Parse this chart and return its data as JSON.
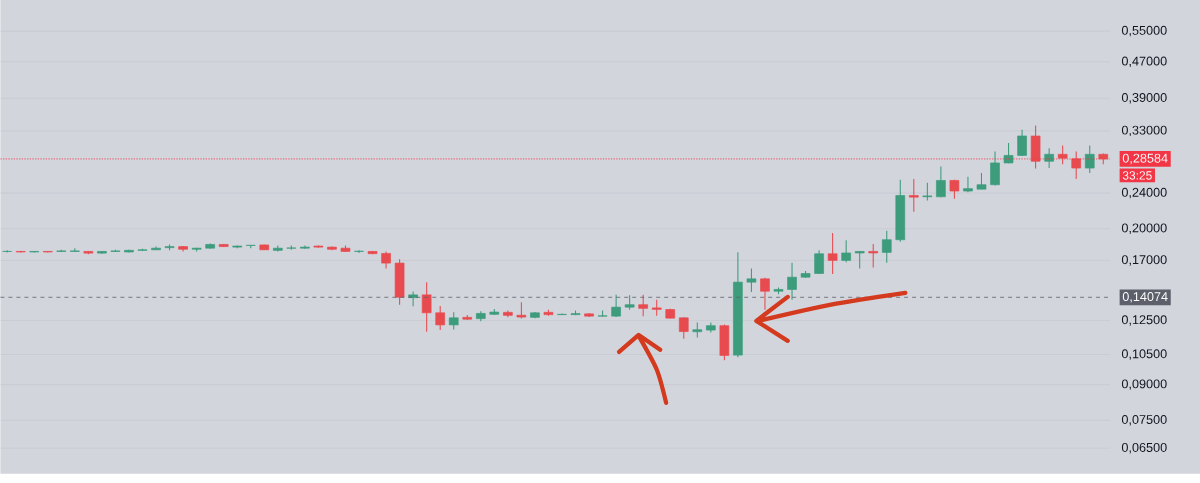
{
  "chart_data": {
    "type": "candlestick",
    "log": true,
    "grid": "y",
    "ylim": [
      0.057,
      0.645
    ],
    "yticks": [
      {
        "value": 0.55,
        "label": "0,55000"
      },
      {
        "value": 0.47,
        "label": "0,47000"
      },
      {
        "value": 0.39,
        "label": "0,39000"
      },
      {
        "value": 0.33,
        "label": "0,33000"
      },
      {
        "value": 0.24,
        "label": "0,24000"
      },
      {
        "value": 0.2,
        "label": "0,20000"
      },
      {
        "value": 0.17,
        "label": "0,17000"
      },
      {
        "value": 0.125,
        "label": "0,12500"
      },
      {
        "value": 0.105,
        "label": "0,10500"
      },
      {
        "value": 0.09,
        "label": "0,09000"
      },
      {
        "value": 0.075,
        "label": "0,07500"
      },
      {
        "value": 0.065,
        "label": "0,06500"
      }
    ],
    "categories": [
      null,
      null,
      null,
      null,
      null,
      null,
      null,
      null,
      null,
      null,
      null,
      null,
      null,
      null,
      null,
      null,
      null,
      null,
      null,
      null,
      null,
      null,
      null,
      null,
      null,
      null,
      null,
      null,
      null,
      null,
      null,
      null,
      null,
      null,
      null,
      null,
      null,
      null,
      null,
      null,
      null,
      null,
      null,
      null,
      null,
      null,
      null,
      null,
      null,
      null,
      null,
      null,
      null,
      null,
      null,
      null,
      null,
      null,
      null,
      null,
      null,
      null,
      null,
      null,
      null,
      null,
      null,
      null,
      null,
      null,
      null,
      null,
      null,
      null,
      null,
      null,
      null,
      null,
      null,
      null,
      null,
      null
    ],
    "ohlc": [
      [
        0.178,
        0.179,
        0.177,
        0.178
      ],
      [
        0.178,
        0.1785,
        0.177,
        0.1775
      ],
      [
        0.1775,
        0.1785,
        0.177,
        0.178
      ],
      [
        0.178,
        0.1785,
        0.177,
        0.1775
      ],
      [
        0.178,
        0.1795,
        0.1775,
        0.1785
      ],
      [
        0.178,
        0.181,
        0.1775,
        0.1785
      ],
      [
        0.178,
        0.1785,
        0.1755,
        0.1765
      ],
      [
        0.1765,
        0.1785,
        0.176,
        0.178
      ],
      [
        0.178,
        0.1795,
        0.1775,
        0.1785
      ],
      [
        0.1775,
        0.1795,
        0.177,
        0.179
      ],
      [
        0.179,
        0.1805,
        0.1785,
        0.1795
      ],
      [
        0.1795,
        0.1825,
        0.1795,
        0.181
      ],
      [
        0.1815,
        0.1845,
        0.179,
        0.1825
      ],
      [
        0.1825,
        0.183,
        0.178,
        0.18
      ],
      [
        0.18,
        0.1815,
        0.178,
        0.181
      ],
      [
        0.181,
        0.1855,
        0.1805,
        0.1845
      ],
      [
        0.1845,
        0.185,
        0.182,
        0.1825
      ],
      [
        0.182,
        0.1835,
        0.181,
        0.183
      ],
      [
        0.1835,
        0.184,
        0.181,
        0.1837
      ],
      [
        0.184,
        0.1845,
        0.1795,
        0.1795
      ],
      [
        0.179,
        0.1835,
        0.178,
        0.181
      ],
      [
        0.181,
        0.1835,
        0.1795,
        0.1812
      ],
      [
        0.181,
        0.1835,
        0.1805,
        0.182
      ],
      [
        0.183,
        0.1835,
        0.1815,
        0.182
      ],
      [
        0.182,
        0.1825,
        0.179,
        0.18
      ],
      [
        0.181,
        0.1835,
        0.1775,
        0.178
      ],
      [
        0.178,
        0.179,
        0.1765,
        0.1782
      ],
      [
        0.178,
        0.1785,
        0.1755,
        0.176
      ],
      [
        0.1762,
        0.178,
        0.163,
        0.1677
      ],
      [
        0.1677,
        0.171,
        0.1354,
        0.1408
      ],
      [
        0.1405,
        0.145,
        0.1345,
        0.1425
      ],
      [
        0.1425,
        0.152,
        0.118,
        0.13
      ],
      [
        0.13,
        0.1346,
        0.119,
        0.1222
      ],
      [
        0.1222,
        0.1303,
        0.1193,
        0.1267
      ],
      [
        0.127,
        0.1285,
        0.1255,
        0.1258
      ],
      [
        0.1262,
        0.131,
        0.1245,
        0.1296
      ],
      [
        0.129,
        0.1325,
        0.1285,
        0.1305
      ],
      [
        0.1303,
        0.1315,
        0.127,
        0.1283
      ],
      [
        0.1284,
        0.1373,
        0.1262,
        0.1272
      ],
      [
        0.127,
        0.1305,
        0.1265,
        0.13
      ],
      [
        0.1303,
        0.132,
        0.128,
        0.1288
      ],
      [
        0.1288,
        0.1295,
        0.1285,
        0.129
      ],
      [
        0.1288,
        0.1315,
        0.1285,
        0.1295
      ],
      [
        0.1293,
        0.1298,
        0.1272,
        0.1278
      ],
      [
        0.1278,
        0.1315,
        0.1275,
        0.128
      ],
      [
        0.1278,
        0.1425,
        0.1272,
        0.1338
      ],
      [
        0.1338,
        0.1422,
        0.132,
        0.1355
      ],
      [
        0.1355,
        0.1425,
        0.1277,
        0.133
      ],
      [
        0.1333,
        0.139,
        0.128,
        0.1323
      ],
      [
        0.1322,
        0.1328,
        0.1262,
        0.1265
      ],
      [
        0.1267,
        0.127,
        0.1138,
        0.1181
      ],
      [
        0.118,
        0.1237,
        0.1146,
        0.1192
      ],
      [
        0.119,
        0.1237,
        0.1176,
        0.1217
      ],
      [
        0.1217,
        0.1225,
        0.102,
        0.1045
      ],
      [
        0.1047,
        0.1773,
        0.1035,
        0.1521
      ],
      [
        0.1521,
        0.163,
        0.1446,
        0.1547
      ],
      [
        0.1547,
        0.1555,
        0.132,
        0.1452
      ],
      [
        0.1452,
        0.148,
        0.143,
        0.1465
      ],
      [
        0.1465,
        0.168,
        0.139,
        0.156
      ],
      [
        0.156,
        0.161,
        0.1555,
        0.159
      ],
      [
        0.159,
        0.179,
        0.1586,
        0.1759
      ],
      [
        0.1759,
        0.1957,
        0.1586,
        0.17
      ],
      [
        0.17,
        0.1885,
        0.1684,
        0.1766
      ],
      [
        0.1766,
        0.1785,
        0.163,
        0.178
      ],
      [
        0.178,
        0.185,
        0.164,
        0.1766
      ],
      [
        0.1771,
        0.198,
        0.168,
        0.189
      ],
      [
        0.189,
        0.257,
        0.187,
        0.237
      ],
      [
        0.237,
        0.258,
        0.218,
        0.235
      ],
      [
        0.2355,
        0.253,
        0.231,
        0.2365
      ],
      [
        0.2355,
        0.275,
        0.235,
        0.256
      ],
      [
        0.256,
        0.257,
        0.233,
        0.2425
      ],
      [
        0.2425,
        0.261,
        0.241,
        0.2455
      ],
      [
        0.2448,
        0.266,
        0.2448,
        0.2505
      ],
      [
        0.2505,
        0.297,
        0.2495,
        0.28
      ],
      [
        0.28,
        0.31,
        0.2795,
        0.291
      ],
      [
        0.291,
        0.332,
        0.29,
        0.3215
      ],
      [
        0.3215,
        0.339,
        0.272,
        0.2824
      ],
      [
        0.2824,
        0.302,
        0.273,
        0.2927
      ],
      [
        0.2927,
        0.306,
        0.278,
        0.287
      ],
      [
        0.286,
        0.297,
        0.258,
        0.2728
      ],
      [
        0.2728,
        0.306,
        0.266,
        0.2927
      ],
      [
        0.2927,
        0.294,
        0.278,
        0.28584
      ]
    ],
    "colors": [
      "#3c9c7c",
      "#e84b4f",
      "#3c9c7c",
      "#e84b4f",
      "#3c9c7c",
      "#3c9c7c",
      "#e84b4f",
      "#3c9c7c",
      "#3c9c7c",
      "#3c9c7c",
      "#3c9c7c",
      "#3c9c7c",
      "#3c9c7c",
      "#e84b4f",
      "#3c9c7c",
      "#3c9c7c",
      "#e84b4f",
      "#3c9c7c",
      "#3c9c7c",
      "#e84b4f",
      "#3c9c7c",
      "#3c9c7c",
      "#3c9c7c",
      "#e84b4f",
      "#e84b4f",
      "#e84b4f",
      "#3c9c7c",
      "#e84b4f",
      "#e84b4f",
      "#e84b4f",
      "#3c9c7c",
      "#e84b4f",
      "#e84b4f",
      "#3c9c7c",
      "#e84b4f",
      "#3c9c7c",
      "#3c9c7c",
      "#e84b4f",
      "#e84b4f",
      "#3c9c7c",
      "#e84b4f",
      "#3c9c7c",
      "#3c9c7c",
      "#e84b4f",
      "#3c9c7c",
      "#3c9c7c",
      "#3c9c7c",
      "#e84b4f",
      "#e84b4f",
      "#e84b4f",
      "#e84b4f",
      "#3c9c7c",
      "#3c9c7c",
      "#e84b4f",
      "#3c9c7c",
      "#3c9c7c",
      "#e84b4f",
      "#3c9c7c",
      "#3c9c7c",
      "#3c9c7c",
      "#3c9c7c",
      "#e84b4f",
      "#3c9c7c",
      "#3c9c7c",
      "#e84b4f",
      "#3c9c7c",
      "#3c9c7c",
      "#e84b4f",
      "#3c9c7c",
      "#3c9c7c",
      "#e84b4f",
      "#3c9c7c",
      "#3c9c7c",
      "#3c9c7c",
      "#3c9c7c",
      "#3c9c7c",
      "#e84b4f",
      "#3c9c7c",
      "#e84b4f",
      "#e84b4f",
      "#3c9c7c",
      "#e84b4f"
    ],
    "ref_lines": [
      {
        "axis": "y",
        "value": 0.28584,
        "label": "0,28584",
        "color": "#f23645",
        "line_style": "dotted"
      },
      {
        "axis": "y",
        "value": 0.14074,
        "label": "0,14074",
        "color": "#5d606b",
        "line_style": "dashed"
      }
    ],
    "annotations": [
      "33:25"
    ]
  }
}
